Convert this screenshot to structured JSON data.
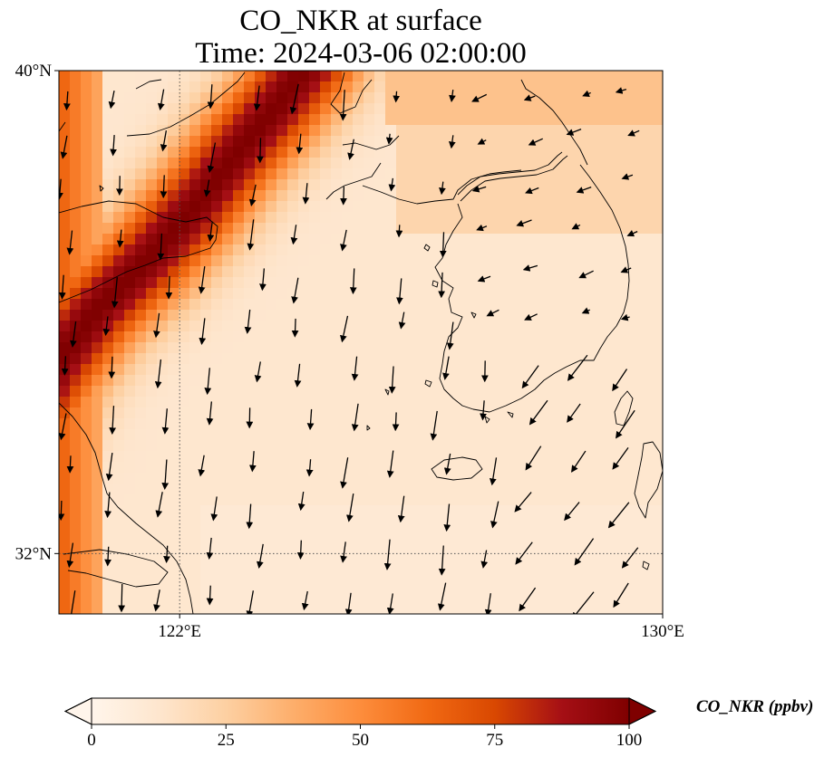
{
  "title": {
    "line1": "CO_NKR at surface",
    "line2": "Time: 2024-03-06 02:00:00"
  },
  "axes": {
    "lat_ticks": [
      {
        "value": 40,
        "label": "40°N"
      },
      {
        "value": 32,
        "label": "32°N"
      }
    ],
    "lon_ticks": [
      {
        "value": 122,
        "label": "122°E"
      },
      {
        "value": 130,
        "label": "130°E"
      }
    ],
    "lon_range": [
      120,
      130
    ],
    "lat_range": [
      31,
      40
    ]
  },
  "colorbar": {
    "label": "CO_NKR (ppbv)",
    "ticks": [
      0,
      25,
      50,
      75,
      100
    ],
    "range": [
      0,
      100
    ],
    "colormap": [
      "#fff5eb",
      "#fee6ce",
      "#fdd0a2",
      "#fdae6b",
      "#fd8d3c",
      "#f16913",
      "#d94801",
      "#a50f15",
      "#7f0000"
    ]
  },
  "field": {
    "plume_axis": [
      [
        124.2,
        40.2
      ],
      [
        123.6,
        39.4
      ],
      [
        123.0,
        38.7
      ],
      [
        122.3,
        37.8
      ],
      [
        121.5,
        36.9
      ],
      [
        120.6,
        36.0
      ],
      [
        120.0,
        35.2
      ],
      [
        119.5,
        34.3
      ]
    ],
    "plume_peak": 100,
    "background": 12
  }
}
